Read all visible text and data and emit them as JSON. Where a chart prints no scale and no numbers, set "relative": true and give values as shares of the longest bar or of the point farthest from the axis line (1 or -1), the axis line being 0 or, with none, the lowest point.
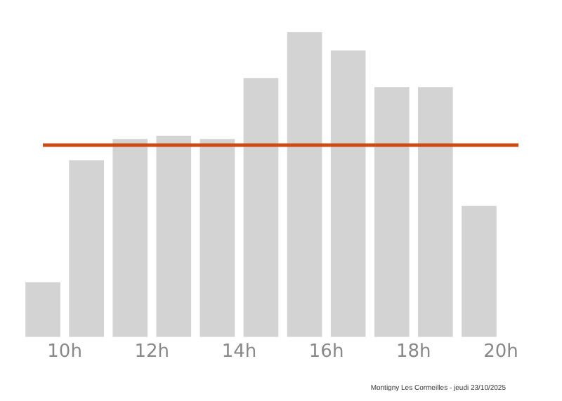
{
  "chart_data": {
    "type": "bar",
    "relative": true,
    "x": [
      9.5,
      10.5,
      11.5,
      12.5,
      13.5,
      14.5,
      15.5,
      16.5,
      17.5,
      18.5,
      19.5
    ],
    "values": [
      0.18,
      0.58,
      0.65,
      0.66,
      0.65,
      0.85,
      1,
      0.94,
      0.82,
      0.82,
      0.43
    ],
    "color": "#d3d3d3",
    "xlim": [
      9,
      20.5
    ],
    "xticks": [
      {
        "value": 10,
        "label": "10h"
      },
      {
        "value": 12,
        "label": "12h"
      },
      {
        "value": 14,
        "label": "14h"
      },
      {
        "value": 16,
        "label": "16h"
      },
      {
        "value": 18,
        "label": "18h"
      },
      {
        "value": 20,
        "label": "20h"
      }
    ],
    "ref_lines": [
      {
        "axis": "y",
        "value": 0.63,
        "color": "#cc4a14"
      }
    ],
    "annotations": [
      "Montigny Les Cormeilles - jeudi 23/10/2025"
    ],
    "grid": false,
    "legend": false
  }
}
